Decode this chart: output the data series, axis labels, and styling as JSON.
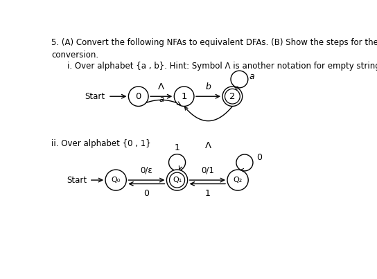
{
  "title_text": "5. (A) Convert the following NFAs to equivalent DFAs. (B) Show the steps for the\nconversion.",
  "part_i_label": "i. Over alphabet {a , b}. Hint: Symbol Λ is another notation for empty string (ε)",
  "part_ii_label": "ii. Over alphabet {0 , 1}",
  "bg_color": "#ffffff",
  "text_color": "#000000"
}
